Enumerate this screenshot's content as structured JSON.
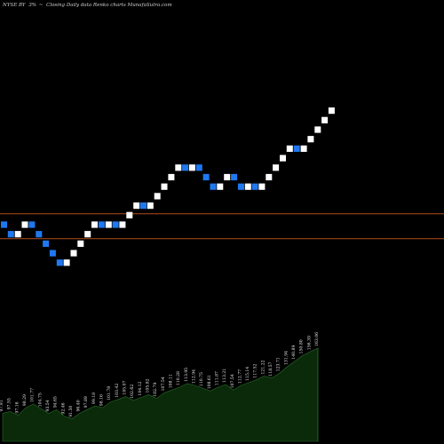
{
  "header": {
    "ticker": "NYSE BY",
    "change": "3%",
    "arrow": "~",
    "caption": "Closing Daily data Renko charts MunafaSutra.com"
  },
  "colors": {
    "background": "#000000",
    "up_brick": "#ffffff",
    "down_brick": "#1f78f0",
    "ref_line": "#b34d1a",
    "volume_fill": "#0a2a0a",
    "volume_stroke": "#2a6a2a",
    "labels": "#e6e6e6"
  },
  "chart_data": {
    "type": "renko",
    "title": "",
    "reference_levels": [
      24.6,
      23.3
    ],
    "bricks": [
      {
        "dir": "down",
        "close": 23.7
      },
      {
        "dir": "down",
        "close": 23.2
      },
      {
        "dir": "up",
        "close": 23.7
      },
      {
        "dir": "up",
        "close": 24.2
      },
      {
        "dir": "down",
        "close": 23.7
      },
      {
        "dir": "down",
        "close": 23.2
      },
      {
        "dir": "down",
        "close": 22.7
      },
      {
        "dir": "down",
        "close": 22.2
      },
      {
        "dir": "down",
        "close": 21.7
      },
      {
        "dir": "up",
        "close": 22.2
      },
      {
        "dir": "up",
        "close": 22.7
      },
      {
        "dir": "up",
        "close": 23.2
      },
      {
        "dir": "up",
        "close": 23.7
      },
      {
        "dir": "up",
        "close": 24.2
      },
      {
        "dir": "down",
        "close": 23.7
      },
      {
        "dir": "up",
        "close": 24.2
      },
      {
        "dir": "down",
        "close": 23.7
      },
      {
        "dir": "up",
        "close": 24.2
      },
      {
        "dir": "up",
        "close": 24.7
      },
      {
        "dir": "up",
        "close": 25.2
      },
      {
        "dir": "down",
        "close": 24.7
      },
      {
        "dir": "up",
        "close": 25.2
      },
      {
        "dir": "up",
        "close": 25.7
      },
      {
        "dir": "up",
        "close": 26.2
      },
      {
        "dir": "up",
        "close": 26.7
      },
      {
        "dir": "up",
        "close": 27.2
      },
      {
        "dir": "down",
        "close": 26.7
      },
      {
        "dir": "up",
        "close": 27.2
      },
      {
        "dir": "down",
        "close": 26.7
      },
      {
        "dir": "down",
        "close": 26.2
      },
      {
        "dir": "down",
        "close": 25.7
      },
      {
        "dir": "up",
        "close": 26.2
      },
      {
        "dir": "up",
        "close": 26.7
      },
      {
        "dir": "down",
        "close": 26.2
      },
      {
        "dir": "down",
        "close": 25.7
      },
      {
        "dir": "up",
        "close": 26.2
      },
      {
        "dir": "down",
        "close": 25.7
      },
      {
        "dir": "up",
        "close": 26.2
      },
      {
        "dir": "up",
        "close": 26.7
      },
      {
        "dir": "up",
        "close": 27.2
      },
      {
        "dir": "up",
        "close": 27.7
      },
      {
        "dir": "up",
        "close": 28.2
      },
      {
        "dir": "down",
        "close": 27.7
      },
      {
        "dir": "up",
        "close": 28.2
      },
      {
        "dir": "up",
        "close": 28.7
      },
      {
        "dir": "up",
        "close": 29.2
      },
      {
        "dir": "up",
        "close": 29.7
      },
      {
        "dir": "up",
        "close": 30.2
      }
    ],
    "volume": [
      {
        "label": "97.91",
        "v": 0.3
      },
      {
        "label": "97.55",
        "v": 0.32
      },
      {
        "label": "97.16",
        "v": 0.28
      },
      {
        "label": "98.29",
        "v": 0.36
      },
      {
        "label": "101.77",
        "v": 0.4
      },
      {
        "label": "104.75",
        "v": 0.35
      },
      {
        "label": "93.54",
        "v": 0.3
      },
      {
        "label": "94.65",
        "v": 0.34
      },
      {
        "label": "92.46",
        "v": 0.27
      },
      {
        "label": "91.50",
        "v": 0.24
      },
      {
        "label": "96.40",
        "v": 0.3
      },
      {
        "label": "97.89",
        "v": 0.34
      },
      {
        "label": "99.18",
        "v": 0.38
      },
      {
        "label": "98.16",
        "v": 0.36
      },
      {
        "label": "101.78",
        "v": 0.42
      },
      {
        "label": "103.42",
        "v": 0.45
      },
      {
        "label": "105.07",
        "v": 0.48
      },
      {
        "label": "102.62",
        "v": 0.44
      },
      {
        "label": "104.12",
        "v": 0.47
      },
      {
        "label": "105.82",
        "v": 0.5
      },
      {
        "label": "102.79",
        "v": 0.46
      },
      {
        "label": "107.54",
        "v": 0.52
      },
      {
        "label": "108.11",
        "v": 0.55
      },
      {
        "label": "110.28",
        "v": 0.58
      },
      {
        "label": "113.95",
        "v": 0.62
      },
      {
        "label": "112.94",
        "v": 0.6
      },
      {
        "label": "110.75",
        "v": 0.57
      },
      {
        "label": "108.61",
        "v": 0.54
      },
      {
        "label": "111.87",
        "v": 0.58
      },
      {
        "label": "113.21",
        "v": 0.61
      },
      {
        "label": "107.54",
        "v": 0.55
      },
      {
        "label": "112.77",
        "v": 0.6
      },
      {
        "label": "115.14",
        "v": 0.63
      },
      {
        "label": "117.52",
        "v": 0.66
      },
      {
        "label": "121.22",
        "v": 0.7
      },
      {
        "label": "118.57",
        "v": 0.68
      },
      {
        "label": "123.71",
        "v": 0.73
      },
      {
        "label": "131.94",
        "v": 0.8
      },
      {
        "label": "140.89",
        "v": 0.86
      },
      {
        "label": "150.80",
        "v": 0.92
      },
      {
        "label": "156.39",
        "v": 0.96
      },
      {
        "label": "163.06",
        "v": 1.0
      }
    ]
  }
}
